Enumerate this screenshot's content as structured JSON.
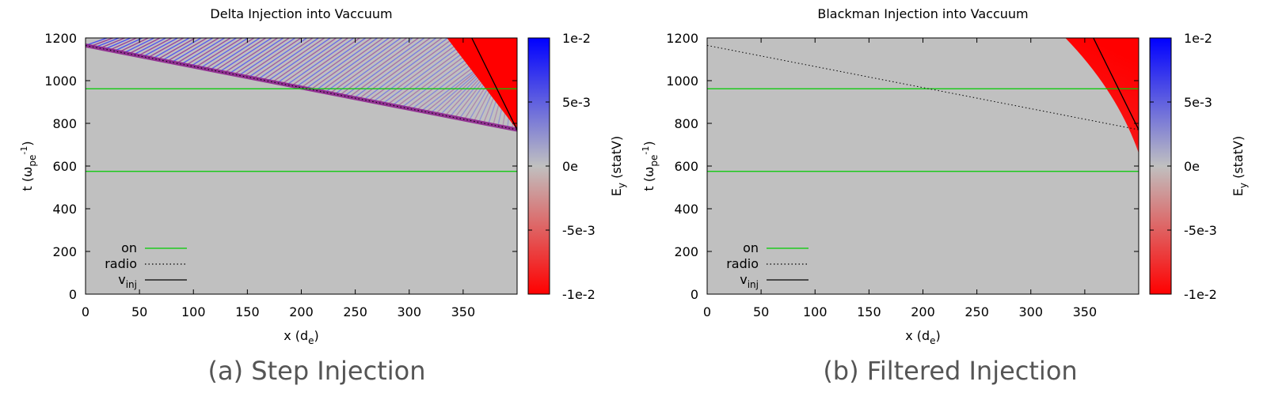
{
  "colors": {
    "background": "#c0c0c0",
    "positive": "#0000ff",
    "negative": "#ff0000",
    "on_line": "#00cc00",
    "radio_line": "#000000",
    "vinj_line": "#000000",
    "stripe_purple": "#8b1a8b",
    "stripe_blue": "#3030ff"
  },
  "chart_data": [
    {
      "type": "heatmap",
      "title": "Delta Injection into Vaccuum",
      "caption": "(a) Step Injection",
      "xlabel": "x (d",
      "xlabel_sub": "e",
      "xlabel_end": ")",
      "ylabel": "t (ω",
      "ylabel_sub": "pe",
      "ylabel_sup": "-1",
      "ylabel_end": ")",
      "xlim": [
        0,
        400
      ],
      "ylim": [
        0,
        1200
      ],
      "xticks": [
        0,
        50,
        100,
        150,
        200,
        250,
        300,
        350
      ],
      "yticks": [
        0,
        200,
        400,
        600,
        800,
        1000,
        1200
      ],
      "colorbar": {
        "label": "E",
        "label_sub": "y",
        "label_end": " (statV)",
        "range": [
          -0.01,
          0.01
        ],
        "ticks": [
          {
            "value": 0.01,
            "label": "1e-2"
          },
          {
            "value": 0.005,
            "label": "5e-3"
          },
          {
            "value": 0,
            "label": "0e"
          },
          {
            "value": -0.005,
            "label": "-5e-3"
          },
          {
            "value": -0.01,
            "label": "-1e-2"
          }
        ]
      },
      "legend": {
        "position": "bottom-left",
        "entries": [
          {
            "label": "on",
            "sub": "",
            "style": "solid-green"
          },
          {
            "label": "radio",
            "sub": "",
            "style": "dotted-black"
          },
          {
            "label": "v",
            "sub": "inj",
            "style": "solid-black"
          }
        ]
      },
      "on_lines_t": [
        575,
        962
      ],
      "radio_line": {
        "x": [
          0,
          400
        ],
        "t": [
          1165,
          770
        ]
      },
      "vinj_line": {
        "x": [
          358,
          400
        ],
        "t": [
          1200,
          770
        ]
      },
      "wavefront": {
        "x": [
          0,
          400
        ],
        "t": [
          1165,
          770
        ]
      },
      "negative_region": {
        "x_top": [
          335,
          400
        ],
        "x_apex": 400,
        "t_apex": 770
      },
      "stripe_band": true,
      "soft_edge": false
    },
    {
      "type": "heatmap",
      "title": "Blackman Injection into Vaccuum",
      "caption": "(b) Filtered Injection",
      "xlabel": "x (d",
      "xlabel_sub": "e",
      "xlabel_end": ")",
      "ylabel": "t (ω",
      "ylabel_sub": "pe",
      "ylabel_sup": "-1",
      "ylabel_end": ")",
      "xlim": [
        0,
        400
      ],
      "ylim": [
        0,
        1200
      ],
      "xticks": [
        0,
        50,
        100,
        150,
        200,
        250,
        300,
        350
      ],
      "yticks": [
        0,
        200,
        400,
        600,
        800,
        1000,
        1200
      ],
      "colorbar": {
        "label": "E",
        "label_sub": "y",
        "label_end": " (statV)",
        "range": [
          -0.01,
          0.01
        ],
        "ticks": [
          {
            "value": 0.01,
            "label": "1e-2"
          },
          {
            "value": 0.005,
            "label": "5e-3"
          },
          {
            "value": 0,
            "label": "0e"
          },
          {
            "value": -0.005,
            "label": "-5e-3"
          },
          {
            "value": -0.01,
            "label": "-1e-2"
          }
        ]
      },
      "legend": {
        "position": "bottom-left",
        "entries": [
          {
            "label": "on",
            "sub": "",
            "style": "solid-green"
          },
          {
            "label": "radio",
            "sub": "",
            "style": "dotted-black"
          },
          {
            "label": "v",
            "sub": "inj",
            "style": "solid-black"
          }
        ]
      },
      "on_lines_t": [
        575,
        962
      ],
      "radio_line": {
        "x": [
          0,
          400
        ],
        "t": [
          1165,
          770
        ]
      },
      "vinj_line": {
        "x": [
          358,
          400
        ],
        "t": [
          1200,
          770
        ]
      },
      "wavefront": null,
      "negative_region": {
        "x_top": [
          332,
          400
        ],
        "x_apex": 400,
        "t_apex": 660
      },
      "stripe_band": false,
      "soft_edge": true
    }
  ]
}
